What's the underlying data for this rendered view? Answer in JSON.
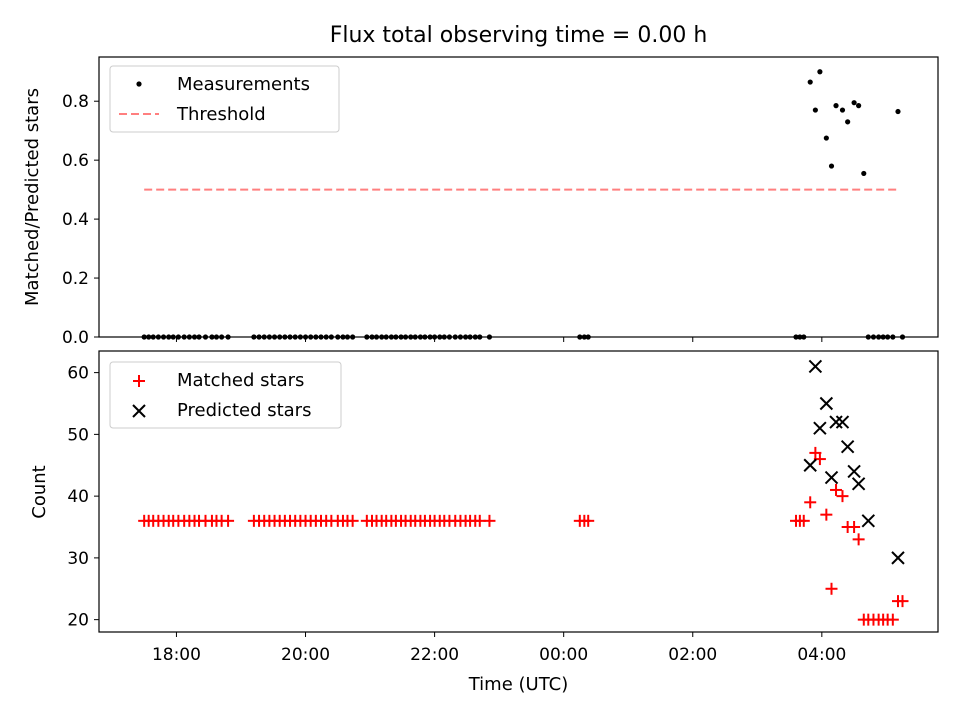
{
  "figure": {
    "title": "Flux total observing time = 0.00 h"
  },
  "chart_data": [
    {
      "type": "scatter",
      "panel": "top",
      "title": "Flux total observing time = 0.00 h",
      "xlabel": "",
      "ylabel": "Matched/Predicted stars",
      "x_unit": "hours since 00:00 UTC",
      "xlim": [
        -7.2,
        5.8
      ],
      "ylim": [
        0.0,
        0.95
      ],
      "yticks": [
        0.0,
        0.2,
        0.4,
        0.6,
        0.8
      ],
      "ytick_labels": [
        "0.0",
        "0.2",
        "0.4",
        "0.6",
        "0.8"
      ],
      "xticks": [
        -6,
        -4,
        -2,
        0,
        2,
        4
      ],
      "legend_position": "top-left",
      "legend": {
        "measurements": "Measurements",
        "threshold": "Threshold"
      },
      "series": [
        {
          "name": "Measurements",
          "style": "dot",
          "color": "#000000",
          "x": [
            -6.5,
            -6.43,
            -6.36,
            -6.28,
            -6.2,
            -6.12,
            -6.05,
            -5.97,
            -5.88,
            -5.8,
            -5.72,
            -5.65,
            -5.55,
            -5.45,
            -5.38,
            -5.3,
            -5.2,
            -4.8,
            -4.72,
            -4.64,
            -4.56,
            -4.48,
            -4.4,
            -4.32,
            -4.24,
            -4.16,
            -4.08,
            -4.0,
            -3.92,
            -3.84,
            -3.76,
            -3.68,
            -3.6,
            -3.5,
            -3.42,
            -3.35,
            -3.27,
            -3.05,
            -2.97,
            -2.9,
            -2.82,
            -2.75,
            -2.67,
            -2.6,
            -2.52,
            -2.45,
            -2.37,
            -2.3,
            -2.22,
            -2.15,
            -2.07,
            -2.0,
            -1.92,
            -1.85,
            -1.77,
            -1.68,
            -1.6,
            -1.52,
            -1.45,
            -1.37,
            -1.3,
            -1.15,
            0.25,
            0.32,
            0.38,
            3.6,
            3.66,
            3.72,
            3.82,
            3.9,
            3.97,
            4.07,
            4.15,
            4.22,
            4.32,
            4.4,
            4.5,
            4.57,
            4.65,
            4.72,
            4.8,
            4.88,
            4.95,
            5.02,
            5.1,
            5.18,
            5.25
          ],
          "y": [
            0,
            0,
            0,
            0,
            0,
            0,
            0,
            0,
            0,
            0,
            0,
            0,
            0,
            0,
            0,
            0,
            0,
            0,
            0,
            0,
            0,
            0,
            0,
            0,
            0,
            0,
            0,
            0,
            0,
            0,
            0,
            0,
            0,
            0,
            0,
            0,
            0,
            0,
            0,
            0,
            0,
            0,
            0,
            0,
            0,
            0,
            0,
            0,
            0,
            0,
            0,
            0,
            0,
            0,
            0,
            0,
            0,
            0,
            0,
            0,
            0,
            0,
            0,
            0,
            0,
            0,
            0,
            0,
            0.865,
            0.77,
            0.9,
            0.675,
            0.58,
            0.785,
            0.77,
            0.73,
            0.795,
            0.785,
            0.555,
            0,
            0,
            0,
            0,
            0,
            0,
            0.765,
            0
          ]
        },
        {
          "name": "Threshold",
          "style": "dashed-line",
          "color": "#ff7f7f",
          "x": [
            -6.5,
            5.2
          ],
          "y": [
            0.5,
            0.5
          ]
        }
      ]
    },
    {
      "type": "scatter",
      "panel": "bottom",
      "xlabel": "Time (UTC)",
      "ylabel": "Count",
      "x_unit": "hours since 00:00 UTC",
      "xlim": [
        -7.2,
        5.8
      ],
      "ylim": [
        18,
        63.5
      ],
      "yticks": [
        20,
        30,
        40,
        50,
        60
      ],
      "ytick_labels": [
        "20",
        "30",
        "40",
        "50",
        "60"
      ],
      "xticks": [
        -6,
        -4,
        -2,
        0,
        2,
        4
      ],
      "xtick_labels": [
        "18:00",
        "20:00",
        "22:00",
        "00:00",
        "02:00",
        "04:00"
      ],
      "legend_position": "top-left",
      "legend": {
        "matched": "Matched stars",
        "predicted": "Predicted stars"
      },
      "series": [
        {
          "name": "Matched stars",
          "marker": "plus",
          "color": "#ff0000",
          "x": [
            -6.5,
            -6.43,
            -6.36,
            -6.28,
            -6.2,
            -6.12,
            -6.05,
            -5.97,
            -5.88,
            -5.8,
            -5.72,
            -5.65,
            -5.55,
            -5.45,
            -5.38,
            -5.3,
            -5.2,
            -4.8,
            -4.72,
            -4.64,
            -4.56,
            -4.48,
            -4.4,
            -4.32,
            -4.24,
            -4.16,
            -4.08,
            -4.0,
            -3.92,
            -3.84,
            -3.76,
            -3.68,
            -3.6,
            -3.5,
            -3.42,
            -3.35,
            -3.27,
            -3.05,
            -2.97,
            -2.9,
            -2.82,
            -2.75,
            -2.67,
            -2.6,
            -2.52,
            -2.45,
            -2.37,
            -2.3,
            -2.22,
            -2.15,
            -2.07,
            -2.0,
            -1.92,
            -1.85,
            -1.77,
            -1.68,
            -1.6,
            -1.52,
            -1.45,
            -1.37,
            -1.3,
            -1.15,
            0.25,
            0.32,
            0.38,
            3.6,
            3.66,
            3.72,
            3.82,
            3.9,
            3.97,
            4.07,
            4.15,
            4.22,
            4.32,
            4.4,
            4.5,
            4.57,
            4.65,
            4.72,
            4.8,
            4.88,
            4.95,
            5.02,
            5.1,
            5.18,
            5.25
          ],
          "y": [
            36,
            36,
            36,
            36,
            36,
            36,
            36,
            36,
            36,
            36,
            36,
            36,
            36,
            36,
            36,
            36,
            36,
            36,
            36,
            36,
            36,
            36,
            36,
            36,
            36,
            36,
            36,
            36,
            36,
            36,
            36,
            36,
            36,
            36,
            36,
            36,
            36,
            36,
            36,
            36,
            36,
            36,
            36,
            36,
            36,
            36,
            36,
            36,
            36,
            36,
            36,
            36,
            36,
            36,
            36,
            36,
            36,
            36,
            36,
            36,
            36,
            36,
            36,
            36,
            36,
            36,
            36,
            36,
            39,
            47,
            46,
            37,
            25,
            41,
            40,
            35,
            35,
            33,
            20,
            20,
            20,
            20,
            20,
            20,
            20,
            23,
            23
          ]
        },
        {
          "name": "Predicted stars",
          "marker": "x",
          "color": "#000000",
          "x": [
            3.82,
            3.9,
            3.97,
            4.07,
            4.15,
            4.22,
            4.32,
            4.4,
            4.5,
            4.57,
            4.72,
            5.18
          ],
          "y": [
            45,
            61,
            51,
            55,
            43,
            52,
            52,
            48,
            44,
            42,
            36,
            30
          ]
        }
      ]
    }
  ]
}
